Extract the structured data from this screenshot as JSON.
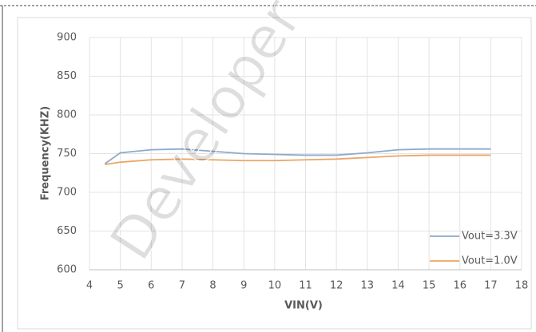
{
  "chart_data": {
    "type": "line",
    "xlabel": "VIN(V)",
    "ylabel": "Frequency(KHZ)",
    "watermark": "Developer",
    "x": [
      4.5,
      5,
      6,
      7,
      8,
      9,
      10,
      11,
      12,
      13,
      14,
      15,
      16,
      17
    ],
    "series": [
      {
        "name": "Vout=3.3V",
        "color": "#8eaacb",
        "values": [
          737,
          751,
          755,
          756,
          753,
          750,
          749,
          748,
          748,
          751,
          755,
          756,
          756,
          756
        ]
      },
      {
        "name": "Vout=1.0V",
        "color": "#eba565",
        "values": [
          736,
          739,
          742,
          743,
          742,
          741,
          741,
          742,
          743,
          745,
          747,
          748,
          748,
          748
        ]
      }
    ],
    "xlim": [
      4,
      18
    ],
    "xticks": [
      4,
      5,
      6,
      7,
      8,
      9,
      10,
      11,
      12,
      13,
      14,
      15,
      16,
      17,
      18
    ],
    "ylim": [
      600,
      900
    ],
    "yticks": [
      600,
      650,
      700,
      750,
      800,
      850,
      900
    ],
    "grid": true,
    "legend": "lower right"
  }
}
